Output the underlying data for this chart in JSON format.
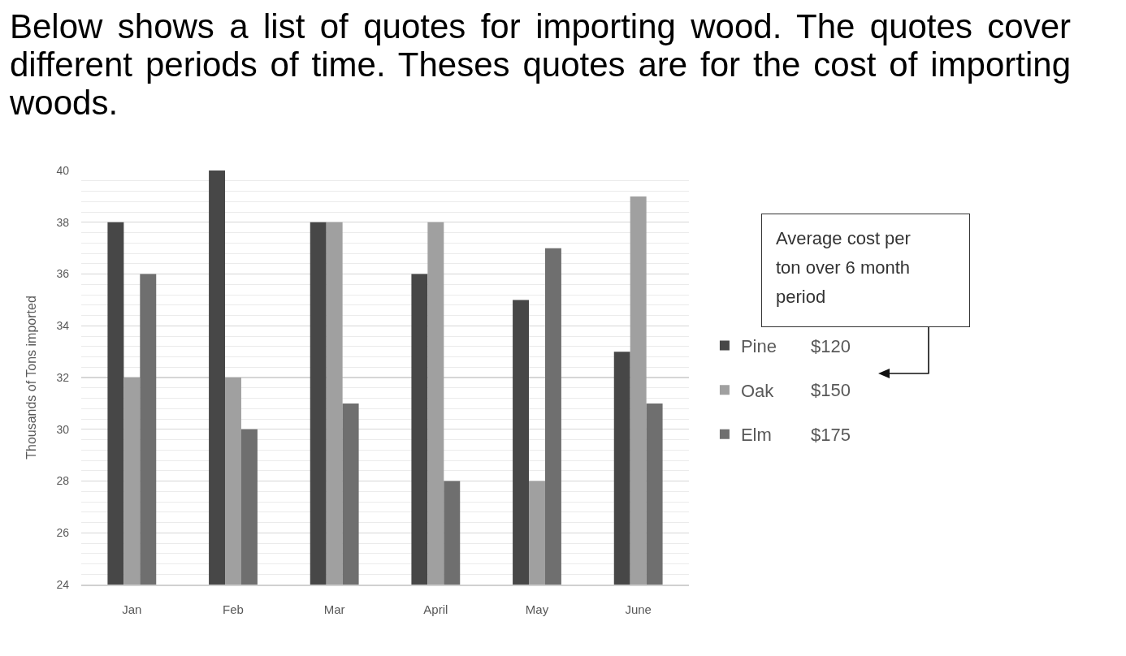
{
  "chart_data": {
    "type": "bar",
    "title": "Below shows a list of quotes for importing wood. The quotes cover different periods of time. Theses quotes are for the cost of importing woods.",
    "ylabel": "Thousands of Tons imported",
    "categories": [
      "Jan",
      "Feb",
      "Mar",
      "April",
      "May",
      "June"
    ],
    "series": [
      {
        "name": "Pine",
        "color": "#474747",
        "values": [
          38,
          40,
          38,
          36,
          35,
          33
        ]
      },
      {
        "name": "Oak",
        "color": "#a0a0a0",
        "values": [
          32,
          32,
          38,
          38,
          28,
          39
        ]
      },
      {
        "name": "Elm",
        "color": "#6f6f6f",
        "values": [
          36,
          30,
          31,
          28,
          37,
          31
        ]
      }
    ],
    "ylim": [
      24,
      40
    ],
    "yticks": [
      24,
      26,
      28,
      30,
      32,
      34,
      36,
      38,
      40
    ],
    "grid": "y",
    "legend": "right",
    "annotations": [
      "Average cost per ton over 6 month period",
      "$120",
      "$150",
      "$175"
    ]
  }
}
